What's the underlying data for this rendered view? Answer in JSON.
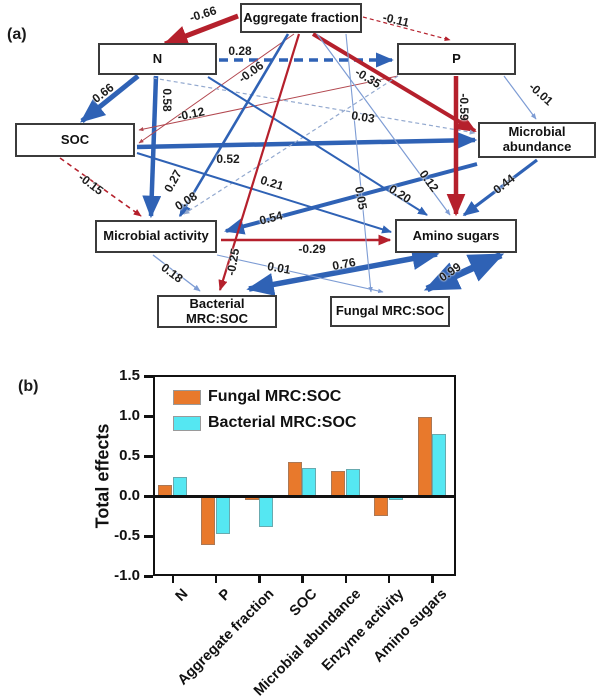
{
  "figure": {
    "panel_a_label": "(a)",
    "panel_b_label": "(b)"
  },
  "diagram": {
    "nodes": [
      {
        "id": "aggregate-fraction",
        "label": "Aggregate fraction"
      },
      {
        "id": "n",
        "label": "N"
      },
      {
        "id": "p",
        "label": "P"
      },
      {
        "id": "soc",
        "label": "SOC"
      },
      {
        "id": "microbial-abundance",
        "label": "Microbial abundance"
      },
      {
        "id": "microbial-activity",
        "label": "Microbial activity"
      },
      {
        "id": "amino-sugars",
        "label": "Amino sugars"
      },
      {
        "id": "bacterial-mrc-soc",
        "label": "Bacterial MRC:SOC"
      },
      {
        "id": "fungal-mrc-soc",
        "label": "Fungal MRC:SOC"
      }
    ],
    "edges": [
      {
        "from": "aggregate-fraction",
        "to": "n",
        "value": "-0.66",
        "sign": "negative",
        "style": "solid"
      },
      {
        "from": "aggregate-fraction",
        "to": "p",
        "value": "-0.11",
        "sign": "negative",
        "style": "dashed"
      },
      {
        "from": "n",
        "to": "p",
        "value": "0.28",
        "sign": "positive",
        "style": "dashed"
      },
      {
        "from": "n",
        "to": "soc",
        "value": "0.66",
        "sign": "positive",
        "style": "solid"
      },
      {
        "from": "n",
        "to": "microbial-activity",
        "value": "0.58",
        "sign": "positive",
        "style": "solid"
      },
      {
        "from": "aggregate-fraction",
        "to": "soc",
        "value": "-0.06",
        "sign": "negative",
        "style": "solid"
      },
      {
        "from": "p",
        "to": "soc",
        "value": "-0.12",
        "sign": "negative",
        "style": "solid"
      },
      {
        "from": "soc",
        "to": "microbial-abundance",
        "value": "0.52",
        "sign": "positive",
        "style": "solid"
      },
      {
        "from": "aggregate-fraction",
        "to": "microbial-abundance",
        "value": "-0.35",
        "sign": "negative",
        "style": "solid"
      },
      {
        "from": "p",
        "to": "microbial-abundance",
        "value": "-0.01",
        "sign": "negative",
        "style": "solid"
      },
      {
        "from": "n",
        "to": "microbial-abundance",
        "value": "0.03",
        "sign": "positive",
        "style": "dashed"
      },
      {
        "from": "soc",
        "to": "microbial-activity",
        "value": "-0.15",
        "sign": "negative",
        "style": "dashed"
      },
      {
        "from": "aggregate-fraction",
        "to": "microbial-activity",
        "value": "0.27",
        "sign": "positive",
        "style": "solid"
      },
      {
        "from": "p",
        "to": "microbial-activity",
        "value": "0.08",
        "sign": "positive",
        "style": "dashed"
      },
      {
        "from": "microbial-abundance",
        "to": "microbial-activity",
        "value": "0.54",
        "sign": "positive",
        "style": "solid"
      },
      {
        "from": "p",
        "to": "amino-sugars",
        "value": "-0.59",
        "sign": "negative",
        "style": "solid"
      },
      {
        "from": "microbial-abundance",
        "to": "amino-sugars",
        "value": "0.44",
        "sign": "positive",
        "style": "solid"
      },
      {
        "from": "n",
        "to": "amino-sugars",
        "value": "0.20",
        "sign": "positive",
        "style": "solid"
      },
      {
        "from": "soc",
        "to": "amino-sugars",
        "value": "0.21",
        "sign": "positive",
        "style": "solid"
      },
      {
        "from": "aggregate-fraction",
        "to": "amino-sugars",
        "value": "0.12",
        "sign": "positive",
        "style": "solid"
      },
      {
        "from": "microbial-activity",
        "to": "amino-sugars",
        "value": "-0.29",
        "sign": "negative",
        "style": "solid"
      },
      {
        "from": "aggregate-fraction",
        "to": "bacterial-mrc-soc",
        "value": "-0.25",
        "sign": "negative",
        "style": "solid"
      },
      {
        "from": "microbial-activity",
        "to": "bacterial-mrc-soc",
        "value": "0.18",
        "sign": "positive",
        "style": "solid"
      },
      {
        "from": "amino-sugars",
        "to": "bacterial-mrc-soc",
        "value": "0.76",
        "sign": "positive",
        "style": "solid",
        "double_headed": true
      },
      {
        "from": "microbial-activity",
        "to": "fungal-mrc-soc",
        "value": "0.01",
        "sign": "positive",
        "style": "solid"
      },
      {
        "from": "aggregate-fraction",
        "to": "fungal-mrc-soc",
        "value": "0.05",
        "sign": "positive",
        "style": "solid"
      },
      {
        "from": "amino-sugars",
        "to": "fungal-mrc-soc",
        "value": "0.99",
        "sign": "positive",
        "style": "solid",
        "double_headed": true
      }
    ],
    "colors": {
      "positive": "#2f62b5",
      "positive_light": "#7d9cd4",
      "dashed_weak": "#93a9cf",
      "negative": "#b5202c",
      "negative_light": "#b2474f"
    }
  },
  "chart_data": {
    "type": "bar",
    "title": "",
    "xlabel": "",
    "ylabel": "Total effects",
    "ylim": [
      -1.0,
      1.5
    ],
    "yticks": [
      "1.5",
      "1.0",
      "0.5",
      "0.0",
      "-0.5",
      "-1.0"
    ],
    "grid": false,
    "legend_position": "top-left-inside",
    "categories": [
      "N",
      "P",
      "Aggregate fraction",
      "SOC",
      "Microbial abundance",
      "Enzyme activity",
      "Amino sugars"
    ],
    "series": [
      {
        "name": "Fungal MRC:SOC",
        "color": "#E8792C",
        "values": [
          0.14,
          -0.6,
          -0.04,
          0.42,
          0.31,
          -0.24,
          0.99
        ]
      },
      {
        "name": "Bacterial MRC:SOC",
        "color": "#55E7F2",
        "values": [
          0.24,
          -0.46,
          -0.37,
          0.35,
          0.34,
          -0.04,
          0.78
        ]
      }
    ]
  }
}
